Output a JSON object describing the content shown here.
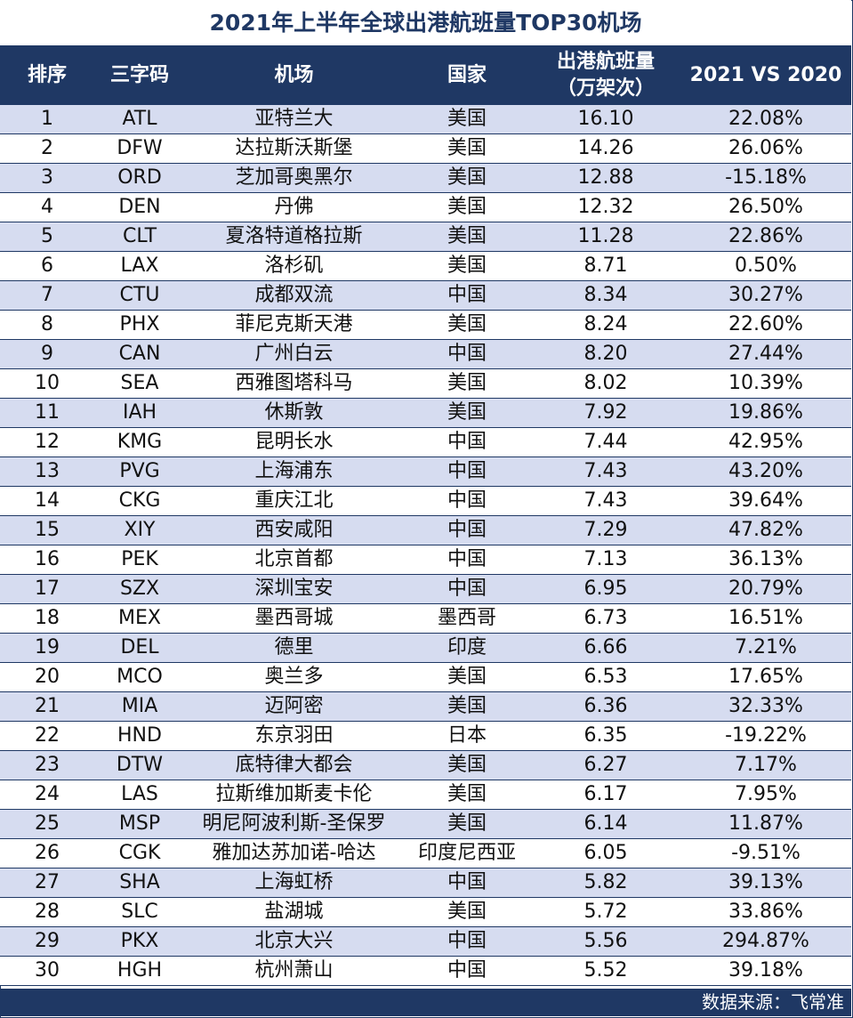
{
  "title": "2021年上半年全球出港航班量TOP30机场",
  "columns": {
    "rank": "排序",
    "code": "三字码",
    "airport": "机场",
    "country": "国家",
    "flights_line1": "出港航班量",
    "flights_line2": "（万架次）",
    "change": "2021 VS 2020"
  },
  "rows": [
    {
      "rank": "1",
      "code": "ATL",
      "airport": "亚特兰大",
      "country": "美国",
      "flights": "16.10",
      "change": "22.08%"
    },
    {
      "rank": "2",
      "code": "DFW",
      "airport": "达拉斯沃斯堡",
      "country": "美国",
      "flights": "14.26",
      "change": "26.06%"
    },
    {
      "rank": "3",
      "code": "ORD",
      "airport": "芝加哥奥黑尔",
      "country": "美国",
      "flights": "12.88",
      "change": "-15.18%"
    },
    {
      "rank": "4",
      "code": "DEN",
      "airport": "丹佛",
      "country": "美国",
      "flights": "12.32",
      "change": "26.50%"
    },
    {
      "rank": "5",
      "code": "CLT",
      "airport": "夏洛特道格拉斯",
      "country": "美国",
      "flights": "11.28",
      "change": "22.86%"
    },
    {
      "rank": "6",
      "code": "LAX",
      "airport": "洛杉矶",
      "country": "美国",
      "flights": "8.71",
      "change": "0.50%"
    },
    {
      "rank": "7",
      "code": "CTU",
      "airport": "成都双流",
      "country": "中国",
      "flights": "8.34",
      "change": "30.27%"
    },
    {
      "rank": "8",
      "code": "PHX",
      "airport": "菲尼克斯天港",
      "country": "美国",
      "flights": "8.24",
      "change": "22.60%"
    },
    {
      "rank": "9",
      "code": "CAN",
      "airport": "广州白云",
      "country": "中国",
      "flights": "8.20",
      "change": "27.44%"
    },
    {
      "rank": "10",
      "code": "SEA",
      "airport": "西雅图塔科马",
      "country": "美国",
      "flights": "8.02",
      "change": "10.39%"
    },
    {
      "rank": "11",
      "code": "IAH",
      "airport": "休斯敦",
      "country": "美国",
      "flights": "7.92",
      "change": "19.86%"
    },
    {
      "rank": "12",
      "code": "KMG",
      "airport": "昆明长水",
      "country": "中国",
      "flights": "7.44",
      "change": "42.95%"
    },
    {
      "rank": "13",
      "code": "PVG",
      "airport": "上海浦东",
      "country": "中国",
      "flights": "7.43",
      "change": "43.20%"
    },
    {
      "rank": "14",
      "code": "CKG",
      "airport": "重庆江北",
      "country": "中国",
      "flights": "7.43",
      "change": "39.64%"
    },
    {
      "rank": "15",
      "code": "XIY",
      "airport": "西安咸阳",
      "country": "中国",
      "flights": "7.29",
      "change": "47.82%"
    },
    {
      "rank": "16",
      "code": "PEK",
      "airport": "北京首都",
      "country": "中国",
      "flights": "7.13",
      "change": "36.13%"
    },
    {
      "rank": "17",
      "code": "SZX",
      "airport": "深圳宝安",
      "country": "中国",
      "flights": "6.95",
      "change": "20.79%"
    },
    {
      "rank": "18",
      "code": "MEX",
      "airport": "墨西哥城",
      "country": "墨西哥",
      "flights": "6.73",
      "change": "16.51%"
    },
    {
      "rank": "19",
      "code": "DEL",
      "airport": "德里",
      "country": "印度",
      "flights": "6.66",
      "change": "7.21%"
    },
    {
      "rank": "20",
      "code": "MCO",
      "airport": "奥兰多",
      "country": "美国",
      "flights": "6.53",
      "change": "17.65%"
    },
    {
      "rank": "21",
      "code": "MIA",
      "airport": "迈阿密",
      "country": "美国",
      "flights": "6.36",
      "change": "32.33%"
    },
    {
      "rank": "22",
      "code": "HND",
      "airport": "东京羽田",
      "country": "日本",
      "flights": "6.35",
      "change": "-19.22%"
    },
    {
      "rank": "23",
      "code": "DTW",
      "airport": "底特律大都会",
      "country": "美国",
      "flights": "6.27",
      "change": "7.17%"
    },
    {
      "rank": "24",
      "code": "LAS",
      "airport": "拉斯维加斯麦卡伦",
      "country": "美国",
      "flights": "6.17",
      "change": "7.95%"
    },
    {
      "rank": "25",
      "code": "MSP",
      "airport": "明尼阿波利斯-圣保罗",
      "country": "美国",
      "flights": "6.14",
      "change": "11.87%"
    },
    {
      "rank": "26",
      "code": "CGK",
      "airport": "雅加达苏加诺-哈达",
      "country": "印度尼西亚",
      "flights": "6.05",
      "change": "-9.51%"
    },
    {
      "rank": "27",
      "code": "SHA",
      "airport": "上海虹桥",
      "country": "中国",
      "flights": "5.82",
      "change": "39.13%"
    },
    {
      "rank": "28",
      "code": "SLC",
      "airport": "盐湖城",
      "country": "美国",
      "flights": "5.72",
      "change": "33.86%"
    },
    {
      "rank": "29",
      "code": "PKX",
      "airport": "北京大兴",
      "country": "中国",
      "flights": "5.56",
      "change": "294.87%"
    },
    {
      "rank": "30",
      "code": "HGH",
      "airport": "杭州萧山",
      "country": "中国",
      "flights": "5.52",
      "change": "39.18%"
    }
  ],
  "footer": {
    "source": "数据来源：飞常准"
  },
  "colors": {
    "header_bg": "#1f3864",
    "row_alt_bg": "#d6dcf0",
    "title_text": "#1f3864"
  }
}
